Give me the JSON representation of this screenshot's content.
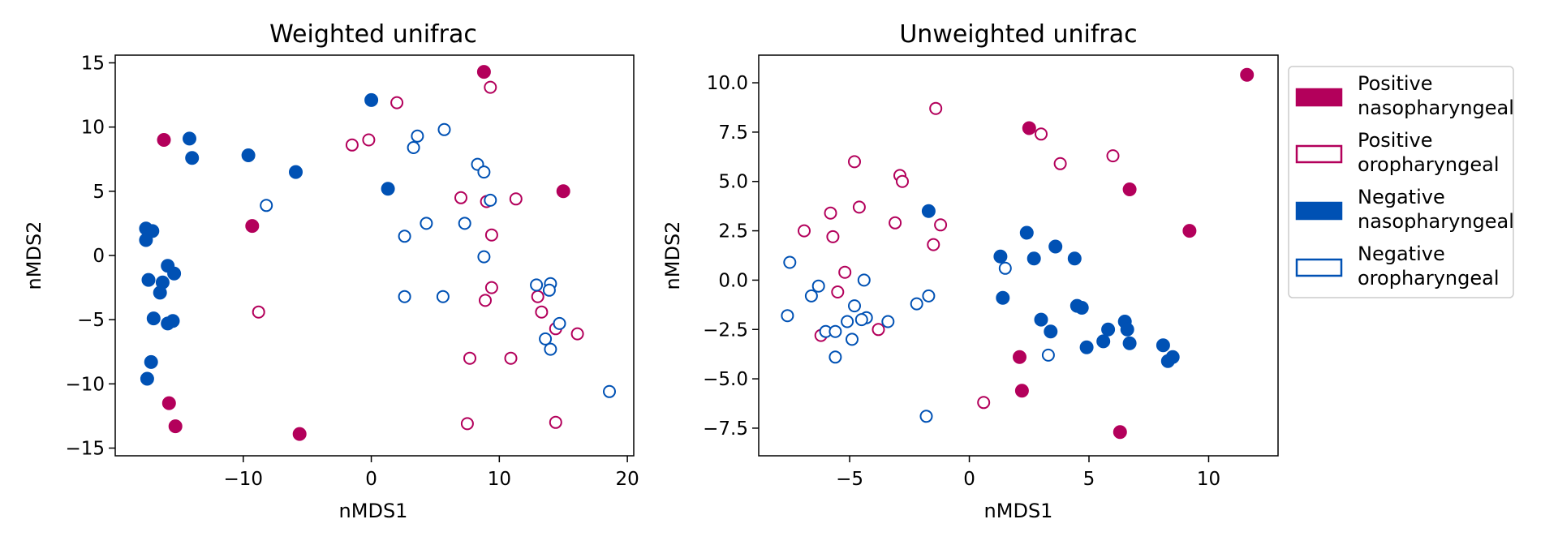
{
  "colors": {
    "positive": "#b3005b",
    "negative": "#0051b4"
  },
  "legend": {
    "placement": "right of second panel, top",
    "items": [
      {
        "label_line1": "Positive",
        "label_line2": "nasopharyngeal",
        "color": "#b3005b",
        "filled": true
      },
      {
        "label_line1": "Positive",
        "label_line2": "oropharyngeal",
        "color": "#b3005b",
        "filled": false
      },
      {
        "label_line1": "Negative",
        "label_line2": "nasopharyngeal",
        "color": "#0051b4",
        "filled": true
      },
      {
        "label_line1": "Negative",
        "label_line2": "oropharyngeal",
        "color": "#0051b4",
        "filled": false
      }
    ]
  },
  "chart_data": [
    {
      "type": "scatter",
      "title": "Weighted unifrac",
      "xlabel": "nMDS1",
      "ylabel": "nMDS2",
      "xlim": [
        -20,
        20.5
      ],
      "ylim": [
        -15.6,
        15.6
      ],
      "xticks": [
        -10,
        0,
        10,
        20
      ],
      "xtick_labels": [
        "−10",
        "0",
        "10",
        "20"
      ],
      "yticks": [
        -15,
        -10,
        -5,
        0,
        5,
        10,
        15
      ],
      "ytick_labels": [
        "−15",
        "−10",
        "−5",
        "0",
        "5",
        "10",
        "15"
      ],
      "grid": false,
      "series": [
        {
          "group": "pos_naso",
          "points": [
            [
              -16.2,
              9.0
            ],
            [
              -9.3,
              2.3
            ],
            [
              8.8,
              14.3
            ],
            [
              15.0,
              5.0
            ],
            [
              -15.8,
              -11.5
            ],
            [
              -15.3,
              -13.3
            ],
            [
              -5.6,
              -13.9
            ]
          ]
        },
        {
          "group": "pos_oro",
          "points": [
            [
              2.0,
              11.9
            ],
            [
              9.3,
              13.1
            ],
            [
              -1.5,
              8.6
            ],
            [
              -0.2,
              9.0
            ],
            [
              7.0,
              4.5
            ],
            [
              9.0,
              4.2
            ],
            [
              11.3,
              4.4
            ],
            [
              9.4,
              1.6
            ],
            [
              -8.8,
              -4.4
            ],
            [
              9.4,
              -2.5
            ],
            [
              8.9,
              -3.5
            ],
            [
              13.0,
              -3.2
            ],
            [
              13.3,
              -4.4
            ],
            [
              14.4,
              -5.7
            ],
            [
              16.1,
              -6.1
            ],
            [
              7.7,
              -8.0
            ],
            [
              10.9,
              -8.0
            ],
            [
              7.5,
              -13.1
            ],
            [
              14.4,
              -13.0
            ]
          ]
        },
        {
          "group": "neg_naso",
          "points": [
            [
              0.0,
              12.1
            ],
            [
              -14.2,
              9.1
            ],
            [
              -14.0,
              7.6
            ],
            [
              -9.6,
              7.8
            ],
            [
              -5.9,
              6.5
            ],
            [
              1.3,
              5.2
            ],
            [
              -17.6,
              2.1
            ],
            [
              -17.1,
              1.9
            ],
            [
              -17.6,
              1.2
            ],
            [
              -15.9,
              -0.8
            ],
            [
              -15.4,
              -1.4
            ],
            [
              -16.3,
              -2.1
            ],
            [
              -17.4,
              -1.9
            ],
            [
              -16.5,
              -2.9
            ],
            [
              -17.0,
              -4.9
            ],
            [
              -15.9,
              -5.3
            ],
            [
              -15.5,
              -5.1
            ],
            [
              -17.2,
              -8.3
            ],
            [
              -17.5,
              -9.6
            ]
          ]
        },
        {
          "group": "neg_oro",
          "points": [
            [
              -8.2,
              3.9
            ],
            [
              3.6,
              9.3
            ],
            [
              3.3,
              8.4
            ],
            [
              5.7,
              9.8
            ],
            [
              8.3,
              7.1
            ],
            [
              8.8,
              6.5
            ],
            [
              9.3,
              4.3
            ],
            [
              4.3,
              2.5
            ],
            [
              2.6,
              1.5
            ],
            [
              7.3,
              2.5
            ],
            [
              8.8,
              -0.1
            ],
            [
              2.6,
              -3.2
            ],
            [
              5.6,
              -3.2
            ],
            [
              12.9,
              -2.3
            ],
            [
              14.0,
              -2.2
            ],
            [
              13.9,
              -2.7
            ],
            [
              14.7,
              -5.3
            ],
            [
              13.6,
              -6.5
            ],
            [
              14.0,
              -7.3
            ],
            [
              18.6,
              -10.6
            ]
          ]
        }
      ]
    },
    {
      "type": "scatter",
      "title": "Unweighted unifrac",
      "xlabel": "nMDS1",
      "ylabel": "nMDS2",
      "xlim": [
        -8.8,
        12.9
      ],
      "ylim": [
        -8.9,
        11.4
      ],
      "xticks": [
        -5,
        0,
        5,
        10
      ],
      "xtick_labels": [
        "−5",
        "0",
        "5",
        "10"
      ],
      "yticks": [
        -7.5,
        -5.0,
        -2.5,
        0.0,
        2.5,
        5.0,
        7.5,
        10.0
      ],
      "ytick_labels": [
        "−7.5",
        "−5.0",
        "−2.5",
        "0.0",
        "2.5",
        "5.0",
        "7.5",
        "10.0"
      ],
      "grid": false,
      "series": [
        {
          "group": "pos_naso",
          "points": [
            [
              11.6,
              10.4
            ],
            [
              2.5,
              7.7
            ],
            [
              6.7,
              4.6
            ],
            [
              9.2,
              2.5
            ],
            [
              2.1,
              -3.9
            ],
            [
              2.2,
              -5.6
            ],
            [
              6.3,
              -7.7
            ]
          ]
        },
        {
          "group": "pos_oro",
          "points": [
            [
              -1.4,
              8.7
            ],
            [
              3.0,
              7.4
            ],
            [
              3.8,
              5.9
            ],
            [
              6.0,
              6.3
            ],
            [
              -4.8,
              6.0
            ],
            [
              -2.9,
              5.3
            ],
            [
              -2.8,
              5.0
            ],
            [
              -4.6,
              3.7
            ],
            [
              -5.8,
              3.4
            ],
            [
              -3.1,
              2.9
            ],
            [
              -1.2,
              2.8
            ],
            [
              -6.9,
              2.5
            ],
            [
              -5.7,
              2.2
            ],
            [
              -1.5,
              1.8
            ],
            [
              -5.2,
              0.4
            ],
            [
              -5.5,
              -0.6
            ],
            [
              -3.8,
              -2.5
            ],
            [
              -6.2,
              -2.8
            ],
            [
              0.6,
              -6.2
            ]
          ]
        },
        {
          "group": "neg_naso",
          "points": [
            [
              -1.7,
              3.5
            ],
            [
              2.4,
              2.4
            ],
            [
              3.6,
              1.7
            ],
            [
              1.3,
              1.2
            ],
            [
              2.7,
              1.1
            ],
            [
              4.4,
              1.1
            ],
            [
              1.4,
              -0.9
            ],
            [
              3.0,
              -2.0
            ],
            [
              3.4,
              -2.6
            ],
            [
              4.5,
              -1.3
            ],
            [
              4.7,
              -1.4
            ],
            [
              6.5,
              -2.1
            ],
            [
              6.6,
              -2.5
            ],
            [
              5.8,
              -2.5
            ],
            [
              6.7,
              -3.2
            ],
            [
              5.6,
              -3.1
            ],
            [
              4.9,
              -3.4
            ],
            [
              8.1,
              -3.3
            ],
            [
              8.5,
              -3.9
            ],
            [
              8.3,
              -4.1
            ]
          ]
        },
        {
          "group": "neg_oro",
          "points": [
            [
              -7.5,
              0.9
            ],
            [
              1.5,
              0.6
            ],
            [
              -4.4,
              0.0
            ],
            [
              -6.3,
              -0.3
            ],
            [
              -6.6,
              -0.8
            ],
            [
              -1.7,
              -0.8
            ],
            [
              -2.2,
              -1.2
            ],
            [
              -4.8,
              -1.3
            ],
            [
              -7.6,
              -1.8
            ],
            [
              -4.3,
              -1.9
            ],
            [
              -4.5,
              -2.0
            ],
            [
              -5.1,
              -2.1
            ],
            [
              -3.4,
              -2.1
            ],
            [
              -6.0,
              -2.6
            ],
            [
              -5.6,
              -2.6
            ],
            [
              -4.9,
              -3.0
            ],
            [
              3.3,
              -3.8
            ],
            [
              -5.6,
              -3.9
            ],
            [
              -1.8,
              -6.9
            ]
          ]
        }
      ]
    }
  ]
}
